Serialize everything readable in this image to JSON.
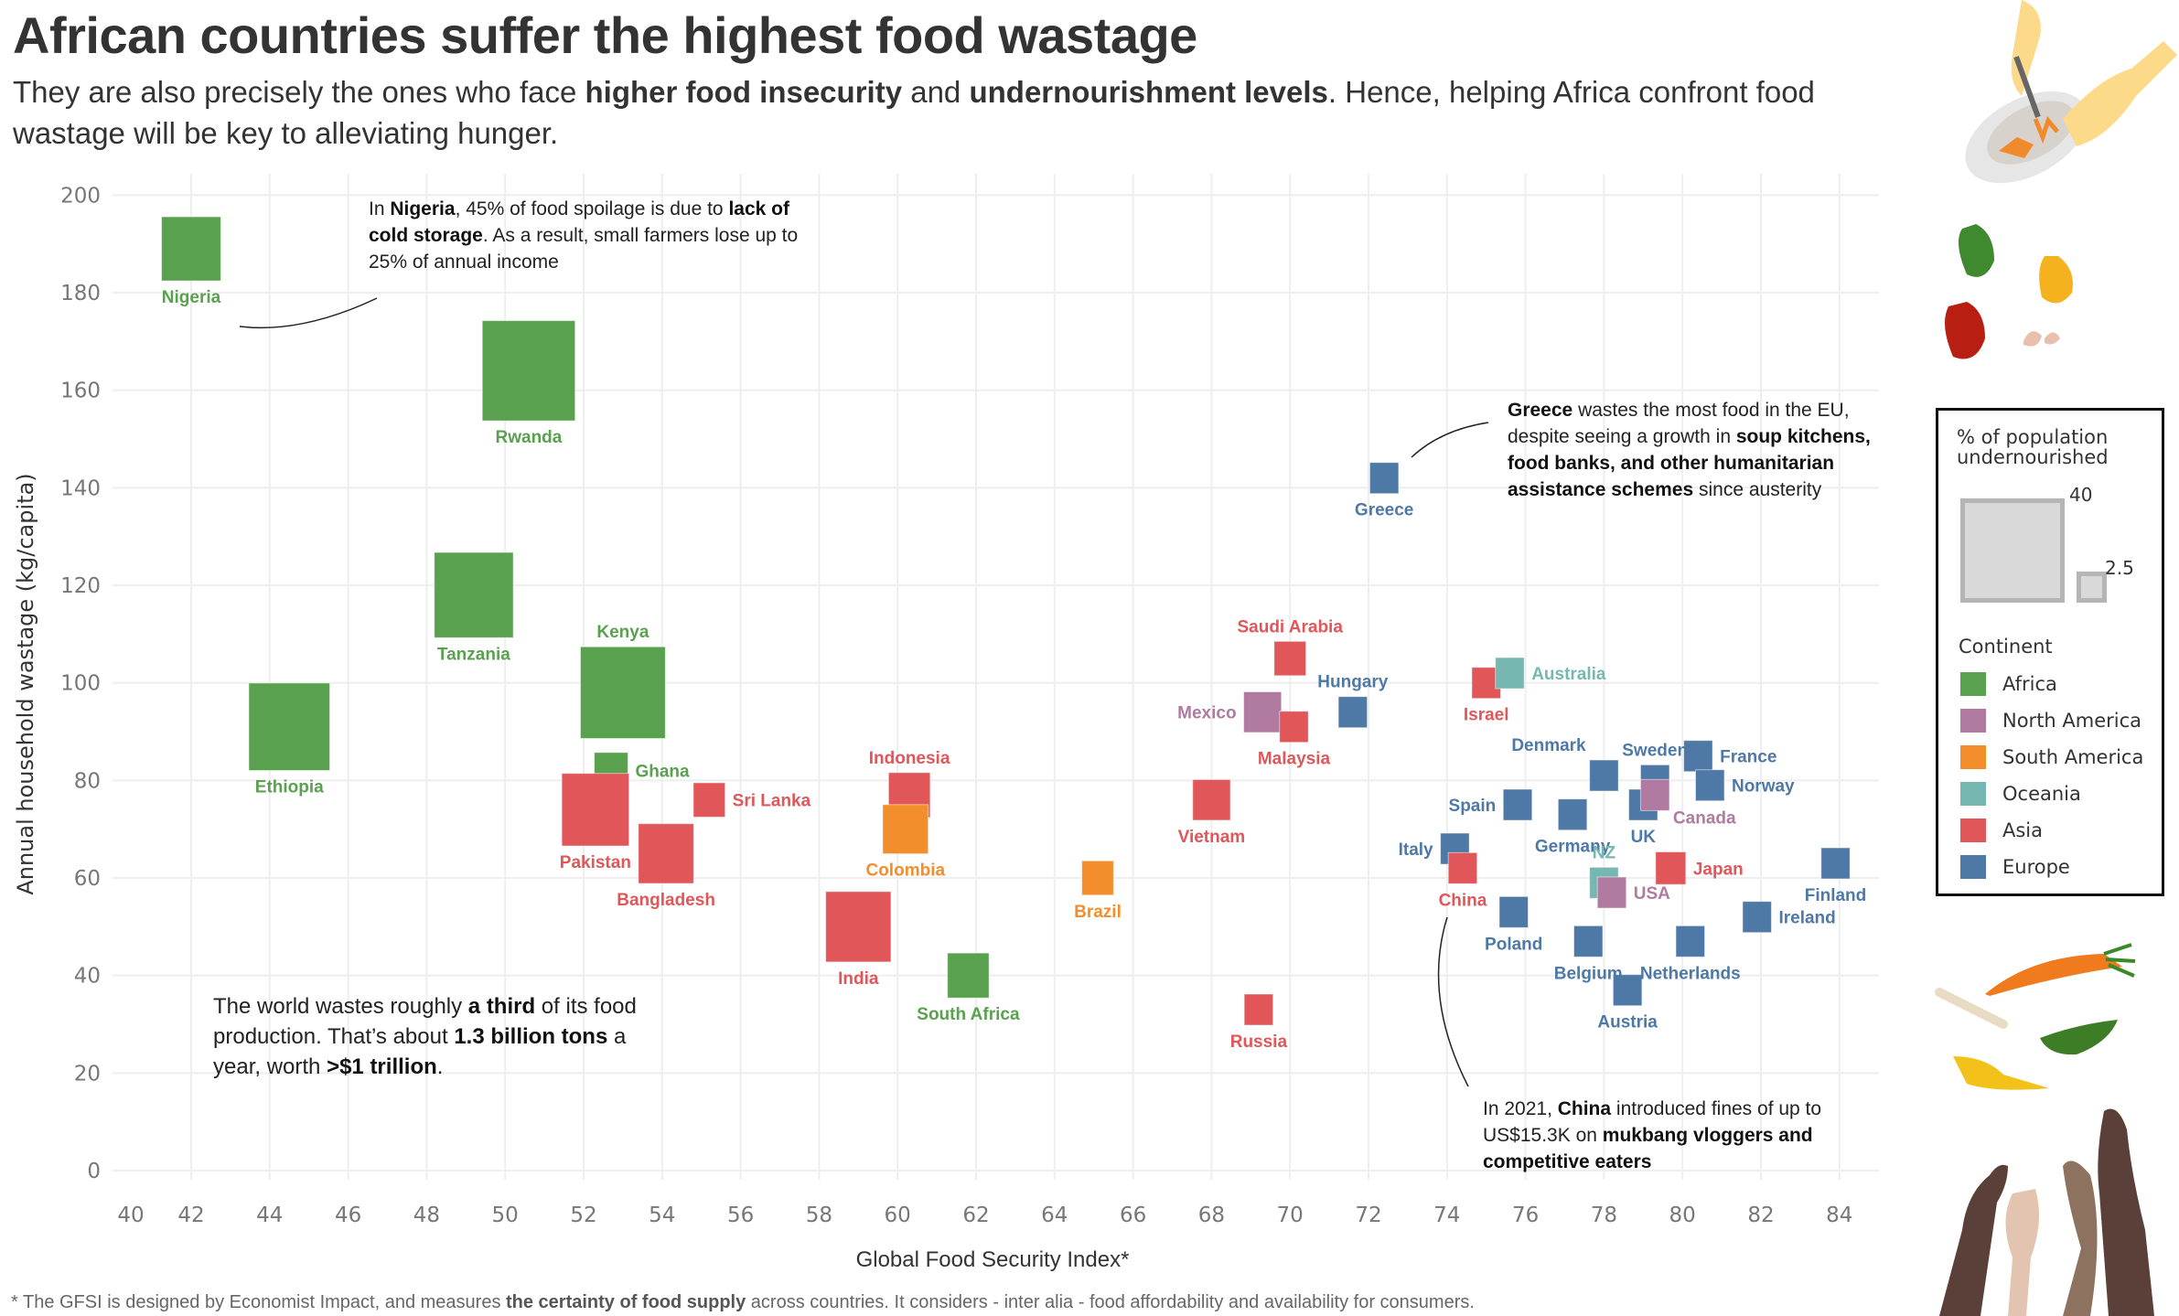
{
  "header": {
    "title": "African countries suffer the highest food wastage",
    "subtitle_parts": [
      {
        "text": "They are also precisely the ones who face ",
        "bold": false
      },
      {
        "text": "higher food insecurity",
        "bold": true
      },
      {
        "text": " and ",
        "bold": false
      },
      {
        "text": "undernourishment levels",
        "bold": true
      },
      {
        "text": ". Hence, helping Africa confront food wastage will be key to alleviating hunger.",
        "bold": false
      }
    ]
  },
  "colors": {
    "Africa": "#59A14F",
    "North America": "#B07AA1",
    "South America": "#F28E2B",
    "Oceania": "#76B7B2",
    "Asia": "#E15759",
    "Europe": "#4E79A7",
    "grid": "#EEEEEE",
    "text": "#333333"
  },
  "annotations": {
    "nigeria": [
      {
        "text": "In ",
        "bold": false
      },
      {
        "text": "Nigeria",
        "bold": true
      },
      {
        "text": ", 45% of food spoilage is due to ",
        "bold": false
      },
      {
        "text": "lack of cold storage",
        "bold": true
      },
      {
        "text": ". As a result, small farmers lose up to 25% of annual income",
        "bold": false
      }
    ],
    "greece": [
      {
        "text": "Greece",
        "bold": true
      },
      {
        "text": " wastes the most food in the EU, despite seeing a growth in ",
        "bold": false
      },
      {
        "text": "soup kitchens, food banks, and other humanitarian assistance schemes",
        "bold": true
      },
      {
        "text": " since austerity",
        "bold": false
      }
    ],
    "world": [
      {
        "text": "The world wastes roughly ",
        "bold": false
      },
      {
        "text": "a third",
        "bold": true
      },
      {
        "text": " of its food production. That’s about ",
        "bold": false
      },
      {
        "text": "1.3 billion tons",
        "bold": true
      },
      {
        "text": " a year, worth ",
        "bold": false
      },
      {
        "text": ">$1 trillion",
        "bold": true
      },
      {
        "text": ".",
        "bold": false
      }
    ],
    "china": [
      {
        "text": "In 2021, ",
        "bold": false
      },
      {
        "text": "China",
        "bold": true
      },
      {
        "text": " introduced fines of up to US$15.3K on ",
        "bold": false
      },
      {
        "text": "mukbang vloggers and competitive eaters",
        "bold": true
      }
    ]
  },
  "footnote_parts": [
    {
      "text": "* The GFSI is designed by Economist Impact, and measures ",
      "bold": false
    },
    {
      "text": "the certainty of food supply",
      "bold": true
    },
    {
      "text": " across countries. It considers - inter alia - food affordability and availability for consumers.",
      "bold": false
    }
  ],
  "legend": {
    "size_title": "% of population undernourished",
    "size_values": [
      "40",
      "2.5"
    ],
    "color_title": "Continent",
    "continents": [
      "Africa",
      "North America",
      "South America",
      "Oceania",
      "Asia",
      "Europe"
    ]
  },
  "illustrations": [
    "hands-scraping-plate",
    "rotten-peppers-eggshell",
    "food-scraps",
    "reaching-hands"
  ],
  "chart_data": {
    "type": "scatter",
    "title": "African countries suffer the highest food wastage",
    "xlabel": "Global Food Security Index*",
    "ylabel": "Annual household wastage (kg/capita)",
    "xlim": [
      40,
      85
    ],
    "ylim": [
      0,
      200
    ],
    "xticks": [
      40,
      42,
      44,
      46,
      48,
      50,
      52,
      54,
      56,
      58,
      60,
      62,
      64,
      66,
      68,
      70,
      72,
      74,
      76,
      78,
      80,
      82,
      84
    ],
    "yticks": [
      0,
      20,
      40,
      60,
      80,
      100,
      120,
      140,
      160,
      180,
      200
    ],
    "grid": true,
    "size_encoding": "% of population undernourished",
    "legend_position": "right",
    "points": [
      {
        "country": "Nigeria",
        "continent": "Africa",
        "x": 42.0,
        "y": 189,
        "size": 18,
        "label_pos": "below"
      },
      {
        "country": "Rwanda",
        "continent": "Africa",
        "x": 50.6,
        "y": 164,
        "size": 35,
        "label_pos": "below"
      },
      {
        "country": "Tanzania",
        "continent": "Africa",
        "x": 49.2,
        "y": 118,
        "size": 28,
        "label_pos": "below"
      },
      {
        "country": "Kenya",
        "continent": "Africa",
        "x": 53.0,
        "y": 98,
        "size": 31,
        "label_pos": "above"
      },
      {
        "country": "Ethiopia",
        "continent": "Africa",
        "x": 44.5,
        "y": 91,
        "size": 29,
        "label_pos": "below"
      },
      {
        "country": "Ghana",
        "continent": "Africa",
        "x": 52.7,
        "y": 82,
        "size": 5,
        "label_pos": "right"
      },
      {
        "country": "Pakistan",
        "continent": "Asia",
        "x": 52.3,
        "y": 74,
        "size": 22,
        "label_pos": "below"
      },
      {
        "country": "Sri Lanka",
        "continent": "Asia",
        "x": 55.2,
        "y": 76,
        "size": 4,
        "label_pos": "right"
      },
      {
        "country": "Bangladesh",
        "continent": "Asia",
        "x": 54.1,
        "y": 65,
        "size": 16,
        "label_pos": "below"
      },
      {
        "country": "Indonesia",
        "continent": "Asia",
        "x": 60.3,
        "y": 77,
        "size": 9,
        "label_pos": "above"
      },
      {
        "country": "Colombia",
        "continent": "South America",
        "x": 60.2,
        "y": 70,
        "size": 11,
        "label_pos": "below"
      },
      {
        "country": "India",
        "continent": "Asia",
        "x": 59.0,
        "y": 50,
        "size": 21,
        "label_pos": "below"
      },
      {
        "country": "South Africa",
        "continent": "Africa",
        "x": 61.8,
        "y": 40,
        "size": 9,
        "label_pos": "below"
      },
      {
        "country": "Brazil",
        "continent": "South America",
        "x": 65.1,
        "y": 60,
        "size": 4,
        "label_pos": "below"
      },
      {
        "country": "Russia",
        "continent": "Asia",
        "x": 69.2,
        "y": 33,
        "size": 2.5,
        "label_pos": "below"
      },
      {
        "country": "Vietnam",
        "continent": "Asia",
        "x": 68.0,
        "y": 76,
        "size": 7,
        "label_pos": "below"
      },
      {
        "country": "Saudi Arabia",
        "continent": "Asia",
        "x": 70.0,
        "y": 105,
        "size": 4,
        "label_pos": "above"
      },
      {
        "country": "Mexico",
        "continent": "North America",
        "x": 69.3,
        "y": 94,
        "size": 7,
        "label_pos": "left"
      },
      {
        "country": "Malaysia",
        "continent": "Asia",
        "x": 70.1,
        "y": 91,
        "size": 2.5,
        "label_pos": "below"
      },
      {
        "country": "Hungary",
        "continent": "Europe",
        "x": 71.6,
        "y": 94,
        "size": 2.5,
        "label_pos": "above"
      },
      {
        "country": "Greece",
        "continent": "Europe",
        "x": 72.4,
        "y": 142,
        "size": 2.5,
        "label_pos": "below"
      },
      {
        "country": "Israel",
        "continent": "Asia",
        "x": 75.0,
        "y": 100,
        "size": 2.5,
        "label_pos": "below"
      },
      {
        "country": "Australia",
        "continent": "Oceania",
        "x": 75.6,
        "y": 102,
        "size": 2.5,
        "label_pos": "right"
      },
      {
        "country": "Denmark",
        "continent": "Europe",
        "x": 78.0,
        "y": 81,
        "size": 2.5,
        "label_pos": "above-left"
      },
      {
        "country": "Sweden",
        "continent": "Europe",
        "x": 79.3,
        "y": 80,
        "size": 2.5,
        "label_pos": "above"
      },
      {
        "country": "France",
        "continent": "Europe",
        "x": 80.4,
        "y": 85,
        "size": 2.5,
        "label_pos": "right"
      },
      {
        "country": "Norway",
        "continent": "Europe",
        "x": 80.7,
        "y": 79,
        "size": 2.5,
        "label_pos": "right"
      },
      {
        "country": "UK",
        "continent": "Europe",
        "x": 79.0,
        "y": 75,
        "size": 2.5,
        "label_pos": "below"
      },
      {
        "country": "Canada",
        "continent": "North America",
        "x": 79.3,
        "y": 77,
        "size": 2.5,
        "label_pos": "below-right"
      },
      {
        "country": "Spain",
        "continent": "Europe",
        "x": 75.8,
        "y": 75,
        "size": 2.5,
        "label_pos": "left"
      },
      {
        "country": "Germany",
        "continent": "Europe",
        "x": 77.2,
        "y": 73,
        "size": 2.5,
        "label_pos": "below"
      },
      {
        "country": "Italy",
        "continent": "Europe",
        "x": 74.2,
        "y": 66,
        "size": 2.5,
        "label_pos": "left"
      },
      {
        "country": "China",
        "continent": "Asia",
        "x": 74.4,
        "y": 62,
        "size": 2.5,
        "label_pos": "below"
      },
      {
        "country": "NZ",
        "continent": "Oceania",
        "x": 78.0,
        "y": 59,
        "size": 2.5,
        "label_pos": "above"
      },
      {
        "country": "USA",
        "continent": "North America",
        "x": 78.2,
        "y": 57,
        "size": 2.5,
        "label_pos": "right"
      },
      {
        "country": "Japan",
        "continent": "Asia",
        "x": 79.7,
        "y": 62,
        "size": 3.2,
        "label_pos": "right"
      },
      {
        "country": "Finland",
        "continent": "Europe",
        "x": 83.9,
        "y": 63,
        "size": 2.5,
        "label_pos": "below"
      },
      {
        "country": "Poland",
        "continent": "Europe",
        "x": 75.7,
        "y": 53,
        "size": 2.5,
        "label_pos": "below"
      },
      {
        "country": "Belgium",
        "continent": "Europe",
        "x": 77.6,
        "y": 47,
        "size": 2.5,
        "label_pos": "below"
      },
      {
        "country": "Netherlands",
        "continent": "Europe",
        "x": 80.2,
        "y": 47,
        "size": 2.5,
        "label_pos": "below"
      },
      {
        "country": "Ireland",
        "continent": "Europe",
        "x": 81.9,
        "y": 52,
        "size": 2.5,
        "label_pos": "right"
      },
      {
        "country": "Austria",
        "continent": "Europe",
        "x": 78.6,
        "y": 37,
        "size": 2.5,
        "label_pos": "below"
      }
    ]
  }
}
